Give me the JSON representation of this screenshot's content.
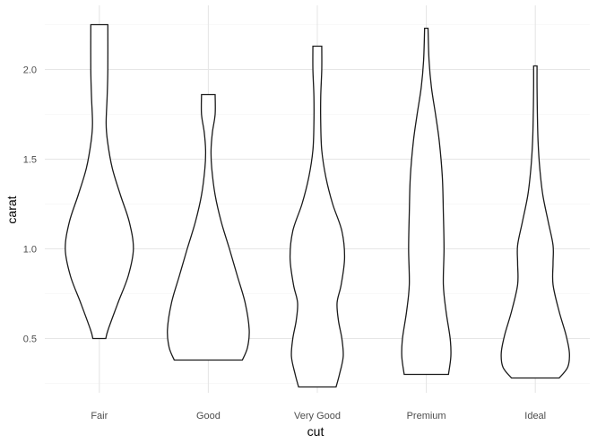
{
  "chart_data": {
    "type": "violin",
    "title": "",
    "xlabel": "cut",
    "ylabel": "carat",
    "categories": [
      "Fair",
      "Good",
      "Very Good",
      "Premium",
      "Ideal"
    ],
    "y_ticks": [
      0.5,
      1.0,
      1.5,
      2.0
    ],
    "y_tick_labels": [
      "0.5",
      "1.0",
      "1.5",
      "2.0"
    ],
    "ylim": [
      0.16,
      2.38
    ],
    "grid": true,
    "legend": "none",
    "colors": {
      "outline": "#1a1a1a",
      "fill": "#ffffff",
      "grid_major": "#e6e6e6",
      "grid_minor": "#f2f2f2"
    },
    "series": [
      {
        "category": "Fair",
        "min": 0.5,
        "max": 2.25,
        "profile": [
          [
            0.5,
            0.19
          ],
          [
            0.55,
            0.26
          ],
          [
            0.7,
            0.55
          ],
          [
            0.85,
            0.85
          ],
          [
            1.0,
            1.0
          ],
          [
            1.15,
            0.88
          ],
          [
            1.3,
            0.62
          ],
          [
            1.45,
            0.38
          ],
          [
            1.6,
            0.24
          ],
          [
            1.7,
            0.2
          ],
          [
            1.85,
            0.23
          ],
          [
            2.0,
            0.25
          ],
          [
            2.25,
            0.25
          ]
        ]
      },
      {
        "category": "Good",
        "min": 0.38,
        "max": 1.86,
        "profile": [
          [
            0.38,
            1.0
          ],
          [
            0.45,
            1.15
          ],
          [
            0.55,
            1.2
          ],
          [
            0.7,
            1.08
          ],
          [
            0.85,
            0.85
          ],
          [
            1.0,
            0.62
          ],
          [
            1.15,
            0.38
          ],
          [
            1.3,
            0.2
          ],
          [
            1.45,
            0.1
          ],
          [
            1.55,
            0.08
          ],
          [
            1.65,
            0.12
          ],
          [
            1.75,
            0.2
          ],
          [
            1.86,
            0.2
          ]
        ]
      },
      {
        "category": "Very Good",
        "min": 0.23,
        "max": 2.13,
        "profile": [
          [
            0.23,
            0.55
          ],
          [
            0.3,
            0.65
          ],
          [
            0.4,
            0.76
          ],
          [
            0.5,
            0.72
          ],
          [
            0.6,
            0.62
          ],
          [
            0.7,
            0.58
          ],
          [
            0.8,
            0.7
          ],
          [
            0.95,
            0.8
          ],
          [
            1.1,
            0.72
          ],
          [
            1.25,
            0.45
          ],
          [
            1.4,
            0.25
          ],
          [
            1.55,
            0.13
          ],
          [
            1.7,
            0.1
          ],
          [
            1.85,
            0.1
          ],
          [
            2.0,
            0.13
          ],
          [
            2.13,
            0.13
          ]
        ]
      },
      {
        "category": "Premium",
        "min": 0.3,
        "max": 2.23,
        "profile": [
          [
            0.3,
            0.65
          ],
          [
            0.4,
            0.72
          ],
          [
            0.5,
            0.7
          ],
          [
            0.65,
            0.58
          ],
          [
            0.8,
            0.5
          ],
          [
            1.0,
            0.52
          ],
          [
            1.2,
            0.5
          ],
          [
            1.4,
            0.47
          ],
          [
            1.6,
            0.38
          ],
          [
            1.75,
            0.27
          ],
          [
            1.9,
            0.15
          ],
          [
            2.05,
            0.08
          ],
          [
            2.23,
            0.05
          ]
        ]
      },
      {
        "category": "Ideal",
        "min": 0.28,
        "max": 2.02,
        "profile": [
          [
            0.28,
            0.7
          ],
          [
            0.34,
            0.95
          ],
          [
            0.42,
            1.0
          ],
          [
            0.52,
            0.9
          ],
          [
            0.65,
            0.7
          ],
          [
            0.8,
            0.52
          ],
          [
            0.92,
            0.52
          ],
          [
            1.02,
            0.52
          ],
          [
            1.15,
            0.38
          ],
          [
            1.3,
            0.22
          ],
          [
            1.45,
            0.13
          ],
          [
            1.6,
            0.08
          ],
          [
            1.75,
            0.06
          ],
          [
            1.9,
            0.05
          ],
          [
            2.02,
            0.05
          ]
        ]
      }
    ]
  }
}
